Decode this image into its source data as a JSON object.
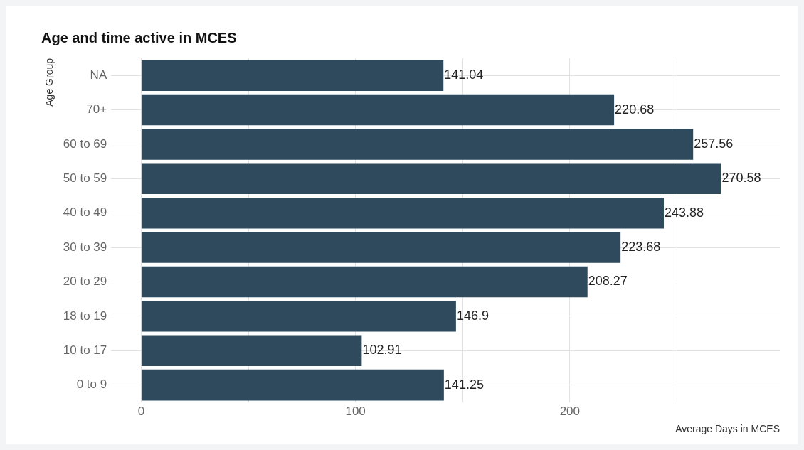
{
  "chart_data": {
    "type": "bar",
    "orientation": "horizontal",
    "title": "Age and time active in MCES",
    "xlabel": "Average Days in MCES",
    "ylabel": "Age Group",
    "categories": [
      "NA",
      "70+",
      "60 to 69",
      "50 to 59",
      "40 to 49",
      "30 to 39",
      "20 to 29",
      "18 to 19",
      "10 to 17",
      "0 to 9"
    ],
    "values": [
      141.04,
      220.68,
      257.56,
      270.58,
      243.88,
      223.68,
      208.27,
      146.9,
      102.91,
      141.25
    ],
    "color": "#2e4a5c",
    "xlim": [
      -14,
      298
    ],
    "xticks": [
      0,
      {
        "value": 50,
        "label": null
      },
      100,
      {
        "value": 150,
        "label": null
      },
      200,
      {
        "value": 250,
        "label": null
      }
    ],
    "grid": true,
    "legend": false,
    "data_labels": true
  }
}
